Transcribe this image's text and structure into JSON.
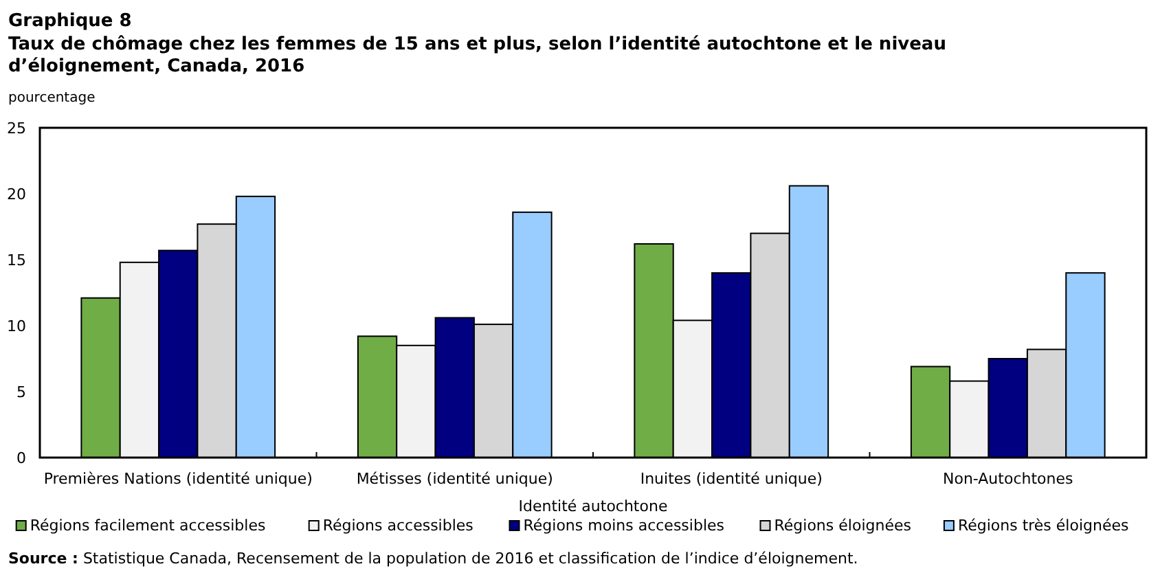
{
  "chart_data": {
    "type": "bar",
    "title": "Graphique 8",
    "subtitle": "Taux de chômage chez les femmes de 15 ans et plus, selon l’identité autochtone et le niveau d’éloignement, Canada, 2016",
    "ylabel": "pourcentage",
    "xlabel": "Identité autochtone",
    "categories": [
      "Premières Nations (identité unique)",
      "Métisses (identité unique)",
      "Inuites (identité unique)",
      "Non-Autochtones"
    ],
    "series": [
      {
        "name": "Régions facilement accessibles",
        "color": "#70ad47",
        "values": [
          12.1,
          9.2,
          16.2,
          6.9
        ]
      },
      {
        "name": "Régions accessibles",
        "color": "#f2f2f2",
        "values": [
          14.8,
          8.5,
          10.4,
          5.8
        ]
      },
      {
        "name": "Régions moins accessibles",
        "color": "#000080",
        "values": [
          15.7,
          10.6,
          14.0,
          7.5
        ]
      },
      {
        "name": "Régions éloignées",
        "color": "#d6d6d6",
        "values": [
          17.7,
          10.1,
          17.0,
          8.2
        ]
      },
      {
        "name": "Régions très éloignées",
        "color": "#99ccff",
        "values": [
          19.8,
          18.6,
          20.6,
          14.0
        ]
      }
    ],
    "ylim": [
      0,
      25
    ],
    "yticks": [
      0,
      5,
      10,
      15,
      20,
      25
    ],
    "grid": false,
    "legend": "bottom",
    "annotations": [
      "Source : Statistique Canada, Recensement de la population de 2016 et classification de l’indice d’éloignement."
    ]
  }
}
